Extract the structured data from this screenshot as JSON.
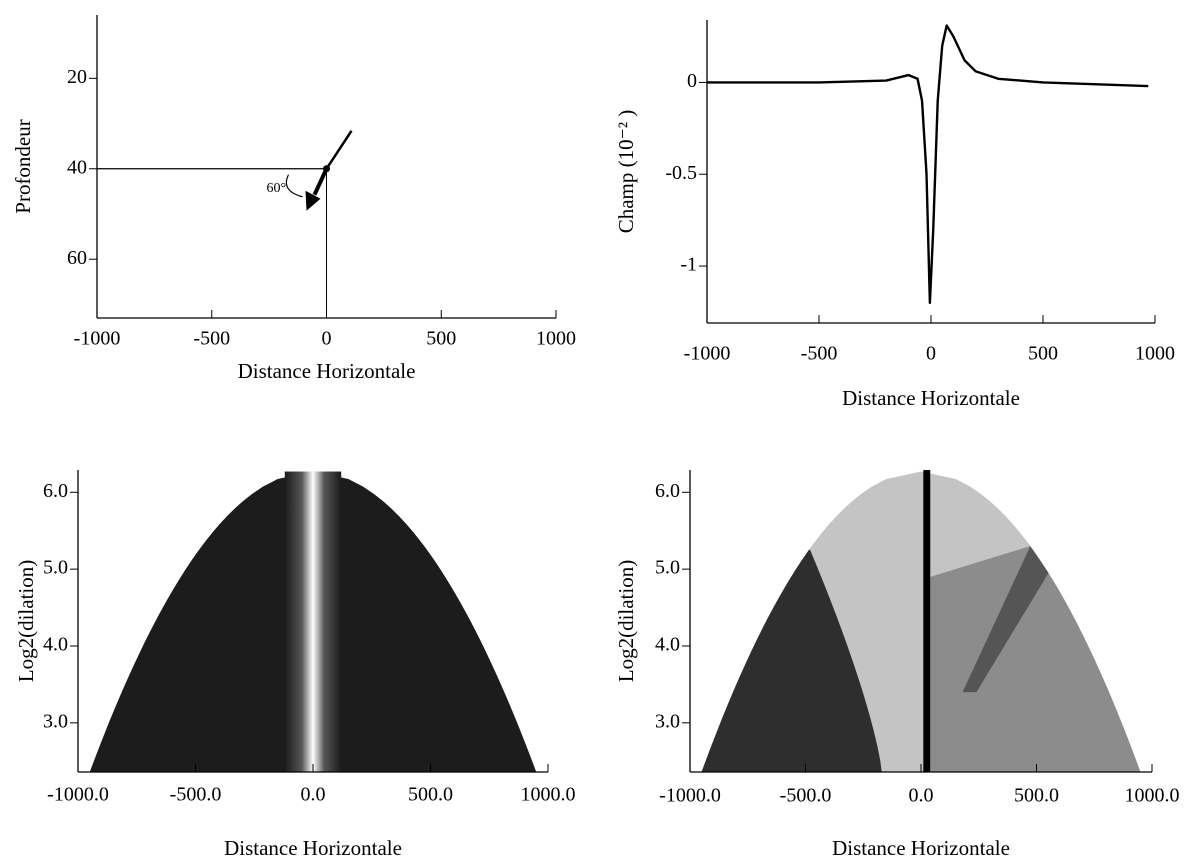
{
  "chart_data": [
    {
      "type": "scatter",
      "xlabel": "Distance Horizontale",
      "ylabel": "Profondeur",
      "x": [
        0
      ],
      "values": [
        40
      ],
      "annotation": "60°",
      "color": "#000000",
      "xlim": [
        -1000,
        1000
      ],
      "xticks": [
        -1000,
        -500,
        0,
        500,
        1000
      ],
      "ylim": [
        6,
        73
      ],
      "y_reversed": true,
      "yticks": [
        20,
        40,
        60
      ]
    },
    {
      "type": "line",
      "xlabel": "Distance Horizontale",
      "ylabel": "Champ (10⁻² )",
      "color": "#000000",
      "x": [
        -1000,
        -500,
        -200,
        -100,
        -60,
        -40,
        -20,
        -5,
        10,
        30,
        50,
        70,
        100,
        150,
        200,
        300,
        500,
        970
      ],
      "values": [
        0,
        0,
        0.01,
        0.04,
        0.02,
        -0.1,
        -0.5,
        -1.2,
        -0.8,
        -0.1,
        0.2,
        0.31,
        0.25,
        0.12,
        0.06,
        0.02,
        0,
        -0.02
      ],
      "xlim": [
        -1000,
        1000
      ],
      "xticks": [
        -1000,
        -500,
        0,
        500,
        1000
      ],
      "ylim": [
        -1.31,
        0.34
      ],
      "yticks": [
        0,
        -0.5,
        -1
      ]
    },
    {
      "type": "heatmap",
      "xlabel": "Distance Horizontale",
      "ylabel": "Log2(dilation)",
      "colors": [
        "#1c1c1c",
        "#ffffff"
      ],
      "xlim": [
        -1000,
        1000
      ],
      "xticks": [
        {
          "value": -1000,
          "label": "-1000.0"
        },
        {
          "value": -500,
          "label": "-500.0"
        },
        {
          "value": 0,
          "label": "0.0"
        },
        {
          "value": 500,
          "label": "500.0"
        },
        {
          "value": 1000,
          "label": "1000.0"
        }
      ],
      "ylim": [
        2.36,
        6.29
      ],
      "yticks": [
        {
          "value": 3,
          "label": "3.0"
        },
        {
          "value": 4,
          "label": "4.0"
        },
        {
          "value": 5,
          "label": "5.0"
        },
        {
          "value": 6,
          "label": "6.0"
        }
      ]
    },
    {
      "type": "heatmap",
      "xlabel": "Distance Horizontale",
      "ylabel": "Log2(dilation)",
      "colors": [
        "#c4c4c4",
        "#2e2e2e",
        "#8c8c8c",
        "#555555",
        "#000000"
      ],
      "xlim": [
        -1000,
        1000
      ],
      "xticks": [
        {
          "value": -1000,
          "label": "-1000.0"
        },
        {
          "value": -500,
          "label": "-500.0"
        },
        {
          "value": 0,
          "label": "0.0"
        },
        {
          "value": 500,
          "label": "500.0"
        },
        {
          "value": 1000,
          "label": "1000.0"
        }
      ],
      "ylim": [
        2.36,
        6.29
      ],
      "yticks": [
        {
          "value": 3,
          "label": "3.0"
        },
        {
          "value": 4,
          "label": "4.0"
        },
        {
          "value": 5,
          "label": "5.0"
        },
        {
          "value": 6,
          "label": "6.0"
        }
      ]
    }
  ]
}
